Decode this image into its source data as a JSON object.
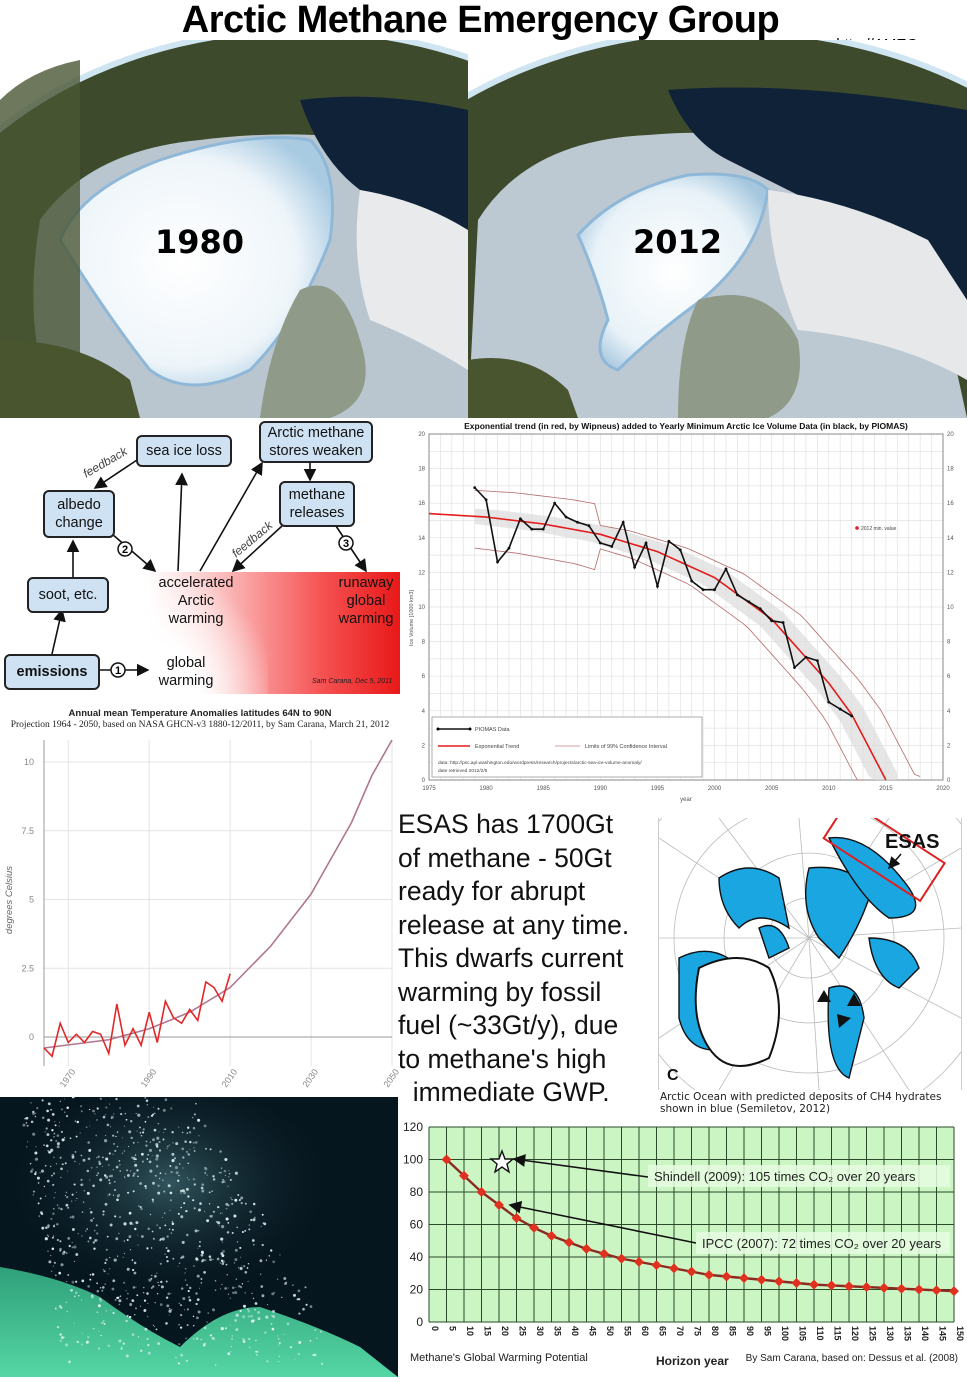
{
  "header": {
    "title": "Arctic Methane Emergency Group",
    "url": "http://AMEG.me"
  },
  "globes": [
    {
      "year_label": "1980"
    },
    {
      "year_label": "2012"
    }
  ],
  "feedback_diagram": {
    "boxes": {
      "sea_ice_loss": "sea ice loss",
      "arctic_methane_line1": "Arctic methane",
      "arctic_methane_line2": "stores weaken",
      "albedo_line1": "albedo",
      "albedo_line2": "change",
      "methane_releases_line1": "methane",
      "methane_releases_line2": "releases",
      "soot": "soot, etc.",
      "emissions": "emissions"
    },
    "labels": {
      "feedback_left": "feedback",
      "feedback_right": "feedback",
      "accelerated_line1": "accelerated",
      "accelerated_line2": "Arctic",
      "accelerated_line3": "warming",
      "runaway_line1": "runaway",
      "runaway_line2": "global",
      "runaway_line3": "warming",
      "global_line1": "global",
      "global_line2": "warming",
      "step1": "1",
      "step2": "2",
      "step3": "3",
      "credit": "Sam Carana, Dec 5, 2011"
    }
  },
  "esas_text": {
    "lines": [
      "ESAS has 1700Gt",
      "of methane - 50Gt",
      "ready for abrupt",
      "release at any time.",
      "This dwarfs current",
      "warming by fossil",
      "fuel (~33Gt/y), due",
      "to methane's high",
      "  immediate GWP."
    ]
  },
  "esas_map": {
    "label": "ESAS",
    "panel_letter": "C",
    "caption_line1": "Arctic Ocean with predicted deposits of CH4 hydrates",
    "caption_line2": "shown in blue (Semiletov, 2012)"
  },
  "chart_data": [
    {
      "type": "line",
      "title": "Exponential trend (in red, by Wipneus) added to Yearly Minimum Arctic Ice Volume Data (in black, by PIOMAS)",
      "xlabel": "year",
      "ylabel": "Ice Volume [1000 km3]",
      "xlim": [
        1975,
        2020
      ],
      "ylim": [
        0,
        20
      ],
      "x_ticks": [
        "1975",
        "1980",
        "1985",
        "1990",
        "1995",
        "2000",
        "2005",
        "2010",
        "2015",
        "2020"
      ],
      "y_ticks": [
        "0",
        "2",
        "4",
        "6",
        "8",
        "10",
        "12",
        "14",
        "16",
        "18",
        "20"
      ],
      "grid": true,
      "series": [
        {
          "name": "PIOMAS Data",
          "color": "#111111",
          "x": [
            1979,
            1980,
            1981,
            1982,
            1983,
            1984,
            1985,
            1986,
            1987,
            1988,
            1989,
            1990,
            1991,
            1992,
            1993,
            1994,
            1995,
            1996,
            1997,
            1998,
            1999,
            2000,
            2001,
            2002,
            2003,
            2004,
            2005,
            2006,
            2007,
            2008,
            2009,
            2010,
            2011,
            2012
          ],
          "values": [
            16.9,
            16.2,
            12.6,
            13.4,
            15.1,
            14.5,
            14.5,
            16.0,
            15.2,
            14.9,
            14.7,
            13.7,
            13.5,
            14.9,
            12.3,
            13.7,
            11.2,
            13.8,
            13.3,
            11.5,
            11.0,
            11.0,
            12.2,
            10.7,
            10.3,
            9.9,
            9.2,
            9.1,
            6.5,
            7.1,
            6.9,
            4.5,
            4.1,
            3.7
          ]
        },
        {
          "name": "Exponential Trend",
          "color": "#e02020",
          "x": [
            1975,
            1980,
            1985,
            1990,
            1995,
            2000,
            2005,
            2010,
            2012,
            2015
          ],
          "values": [
            15.4,
            15.2,
            14.8,
            14.2,
            13.2,
            11.7,
            9.3,
            5.6,
            3.8,
            0.0
          ]
        },
        {
          "name": "Limits of 99% Confidence Interval",
          "color": "#c08080"
        }
      ],
      "legend": [
        "PIOMAS Data",
        "Exponential Trend",
        "Limits of 99% Confidence Interval"
      ],
      "legend_note_line1": "data: http://psc.apl.washington.edu/wordpress/research/projects/arctic-sea-ice-volume-anomaly/",
      "legend_note_line2": "date retrieved 2012/2/5",
      "annotation": "2012 min. value"
    },
    {
      "type": "line",
      "title": "Annual mean Temperature Anomalies latitudes 64N to 90N",
      "subtitle": "Projection 1964 - 2050, based on NASA GHCN-v3 1880-12/2011, by Sam Carana, March 21, 2012",
      "xlabel": "",
      "ylabel": "degrees Celsius",
      "xlim": [
        1964,
        2050
      ],
      "ylim": [
        -1,
        11
      ],
      "x_ticks": [
        "1970",
        "1990",
        "2010",
        "2030",
        "2050"
      ],
      "y_ticks": [
        "0",
        "2.5",
        "5",
        "7.5",
        "10"
      ],
      "grid": true,
      "series": [
        {
          "name": "Observed anomaly",
          "color": "#e02828",
          "x": [
            1964,
            1966,
            1968,
            1970,
            1972,
            1974,
            1976,
            1978,
            1980,
            1982,
            1984,
            1986,
            1988,
            1990,
            1992,
            1994,
            1996,
            1998,
            2000,
            2002,
            2004,
            2006,
            2008,
            2010
          ],
          "values": [
            -0.4,
            -0.7,
            0.5,
            -0.2,
            0.1,
            -0.2,
            0.2,
            0.1,
            -0.6,
            1.2,
            -0.3,
            0.3,
            -0.3,
            0.9,
            -0.2,
            1.3,
            0.7,
            0.5,
            1.0,
            0.6,
            2.0,
            1.8,
            1.3,
            2.3
          ]
        },
        {
          "name": "Exponential projection",
          "color": "#b07890",
          "x": [
            1964,
            1980,
            1990,
            2000,
            2010,
            2020,
            2030,
            2040,
            2045,
            2050
          ],
          "values": [
            -0.4,
            -0.1,
            0.3,
            0.9,
            1.8,
            3.3,
            5.2,
            7.8,
            9.5,
            11.5
          ]
        }
      ]
    },
    {
      "type": "line",
      "title": "Methane's Global Warming Potential",
      "xlabel": "Horizon year",
      "ylabel": "",
      "credit": "By Sam Carana, based on: Dessus et al. (2008)",
      "xlim": [
        0,
        150
      ],
      "ylim": [
        0,
        120
      ],
      "x_ticks": [
        "0",
        "5",
        "10",
        "15",
        "20",
        "25",
        "30",
        "35",
        "40",
        "45",
        "50",
        "55",
        "60",
        "65",
        "70",
        "75",
        "80",
        "85",
        "90",
        "95",
        "100",
        "105",
        "110",
        "115",
        "120",
        "125",
        "130",
        "135",
        "140",
        "145",
        "150"
      ],
      "y_ticks": [
        "0",
        "20",
        "40",
        "60",
        "80",
        "100",
        "120"
      ],
      "grid": true,
      "series": [
        {
          "name": "GWP",
          "color": "#e03020",
          "x": [
            5,
            10,
            15,
            20,
            25,
            30,
            35,
            40,
            45,
            50,
            55,
            60,
            65,
            70,
            75,
            80,
            85,
            90,
            95,
            100,
            105,
            110,
            115,
            120,
            125,
            130,
            135,
            140,
            145,
            150
          ],
          "values": [
            100,
            90,
            80,
            72,
            64,
            58,
            53,
            49,
            45,
            42,
            39,
            37,
            35,
            33,
            31,
            29,
            28,
            27,
            26,
            25,
            24,
            23,
            22.5,
            22,
            21.5,
            21,
            20.5,
            20,
            19.5,
            19
          ]
        }
      ],
      "annotations": [
        {
          "text": "Shindell (2009): 105 times CO₂ over 20 years",
          "x": 20,
          "y": 102
        },
        {
          "text": "IPCC (2007): 72 times CO₂ over 20 years",
          "x": 20,
          "y": 72
        }
      ]
    }
  ]
}
